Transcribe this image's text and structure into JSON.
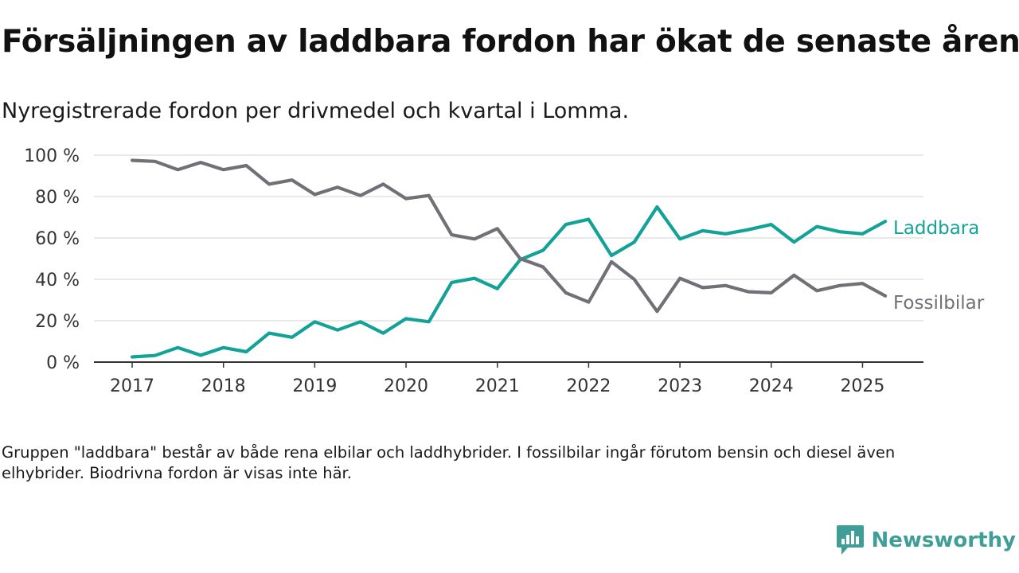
{
  "header": {
    "title": "Försäljningen av laddbara fordon har ökat de senaste åren",
    "subtitle": "Nyregistrerade fordon per drivmedel och kvartal i Lomma."
  },
  "footer": {
    "note": "Gruppen \"laddbara\" består av både rena elbilar och laddhybrider. I fossilbilar ingår förutom bensin och diesel även elhybrider. Biodrivna fordon är visas inte här.",
    "brand_name": "Newsworthy",
    "brand_icon": "newsworthy-logo-icon",
    "brand_color": "#3f9f98"
  },
  "chart_data": {
    "type": "line",
    "x": [
      "2017 Q1",
      "2017 Q2",
      "2017 Q3",
      "2017 Q4",
      "2018 Q1",
      "2018 Q2",
      "2018 Q3",
      "2018 Q4",
      "2019 Q1",
      "2019 Q2",
      "2019 Q3",
      "2019 Q4",
      "2020 Q1",
      "2020 Q2",
      "2020 Q3",
      "2020 Q4",
      "2021 Q1",
      "2021 Q2",
      "2021 Q3",
      "2021 Q4",
      "2022 Q1",
      "2022 Q2",
      "2022 Q3",
      "2022 Q4",
      "2023 Q1",
      "2023 Q2",
      "2023 Q3",
      "2023 Q4",
      "2024 Q1",
      "2024 Q2",
      "2024 Q3",
      "2024 Q4",
      "2025 Q1",
      "2025 Q2"
    ],
    "x_tick_labels": [
      "2017",
      "2018",
      "2019",
      "2020",
      "2021",
      "2022",
      "2023",
      "2024",
      "2025"
    ],
    "y_tick_labels": [
      "0 %",
      "20 %",
      "40 %",
      "60 %",
      "80 %",
      "100 %"
    ],
    "ylim": [
      0,
      100
    ],
    "grid": true,
    "legend": "direct-labels-right",
    "series": [
      {
        "name": "Laddbara",
        "color": "#12a298",
        "values": [
          2.5,
          3.2,
          7,
          3.3,
          7,
          5,
          14,
          12,
          19.5,
          15.5,
          19.5,
          14,
          21,
          19.5,
          38.5,
          40.5,
          35.5,
          49.5,
          54,
          66.5,
          69,
          51.5,
          58,
          75,
          59.5,
          63.5,
          62,
          64,
          66.5,
          58,
          65.5,
          63,
          62,
          68
        ]
      },
      {
        "name": "Fossilbilar",
        "color": "#707076",
        "values": [
          97.5,
          97,
          93,
          96.5,
          93,
          95,
          86,
          88,
          81,
          84.5,
          80.5,
          86,
          79,
          80.5,
          61.5,
          59.5,
          64.5,
          50,
          46,
          33.5,
          29,
          48.5,
          40,
          24.5,
          40.5,
          36,
          37,
          34,
          33.5,
          42,
          34.5,
          37,
          38,
          32
        ]
      }
    ]
  }
}
